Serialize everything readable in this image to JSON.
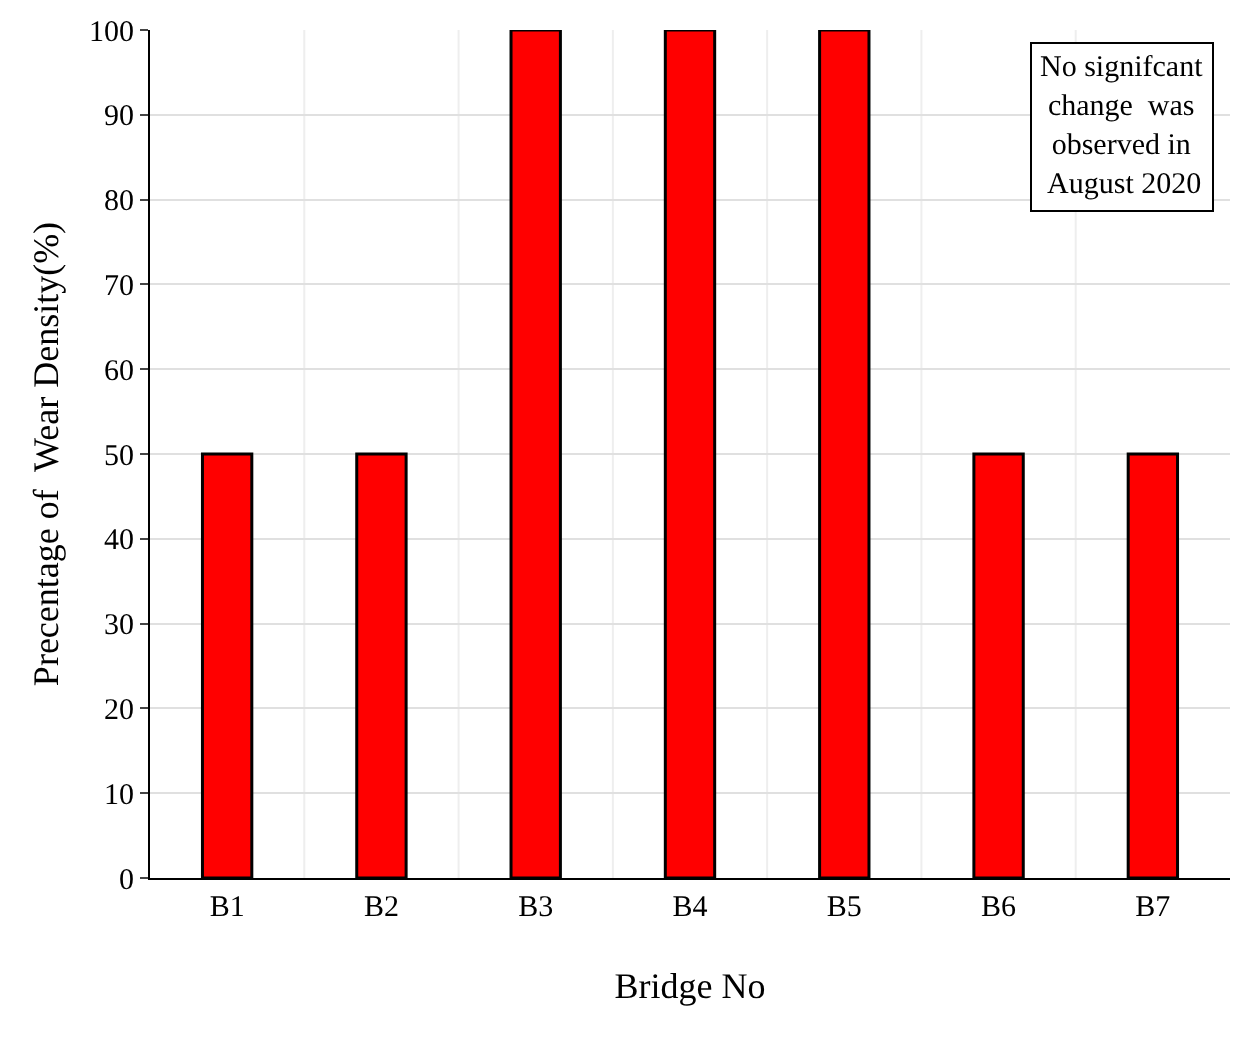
{
  "chart_data": {
    "type": "bar",
    "xlabel": "Bridge No",
    "ylabel": "Precentage of  Wear Density(%)",
    "categories": [
      "B1",
      "B2",
      "B3",
      "B4",
      "B5",
      "B6",
      "B7"
    ],
    "values": [
      50,
      50,
      100,
      100,
      100,
      50,
      50
    ],
    "color": "#ff0000",
    "ylim": [
      0,
      100
    ],
    "yticks": [
      0,
      10,
      20,
      30,
      40,
      50,
      60,
      70,
      80,
      90,
      100
    ],
    "grid": true,
    "annotations": [
      "No signifcant\nchange  was\nobserved in\n August 2020"
    ]
  }
}
